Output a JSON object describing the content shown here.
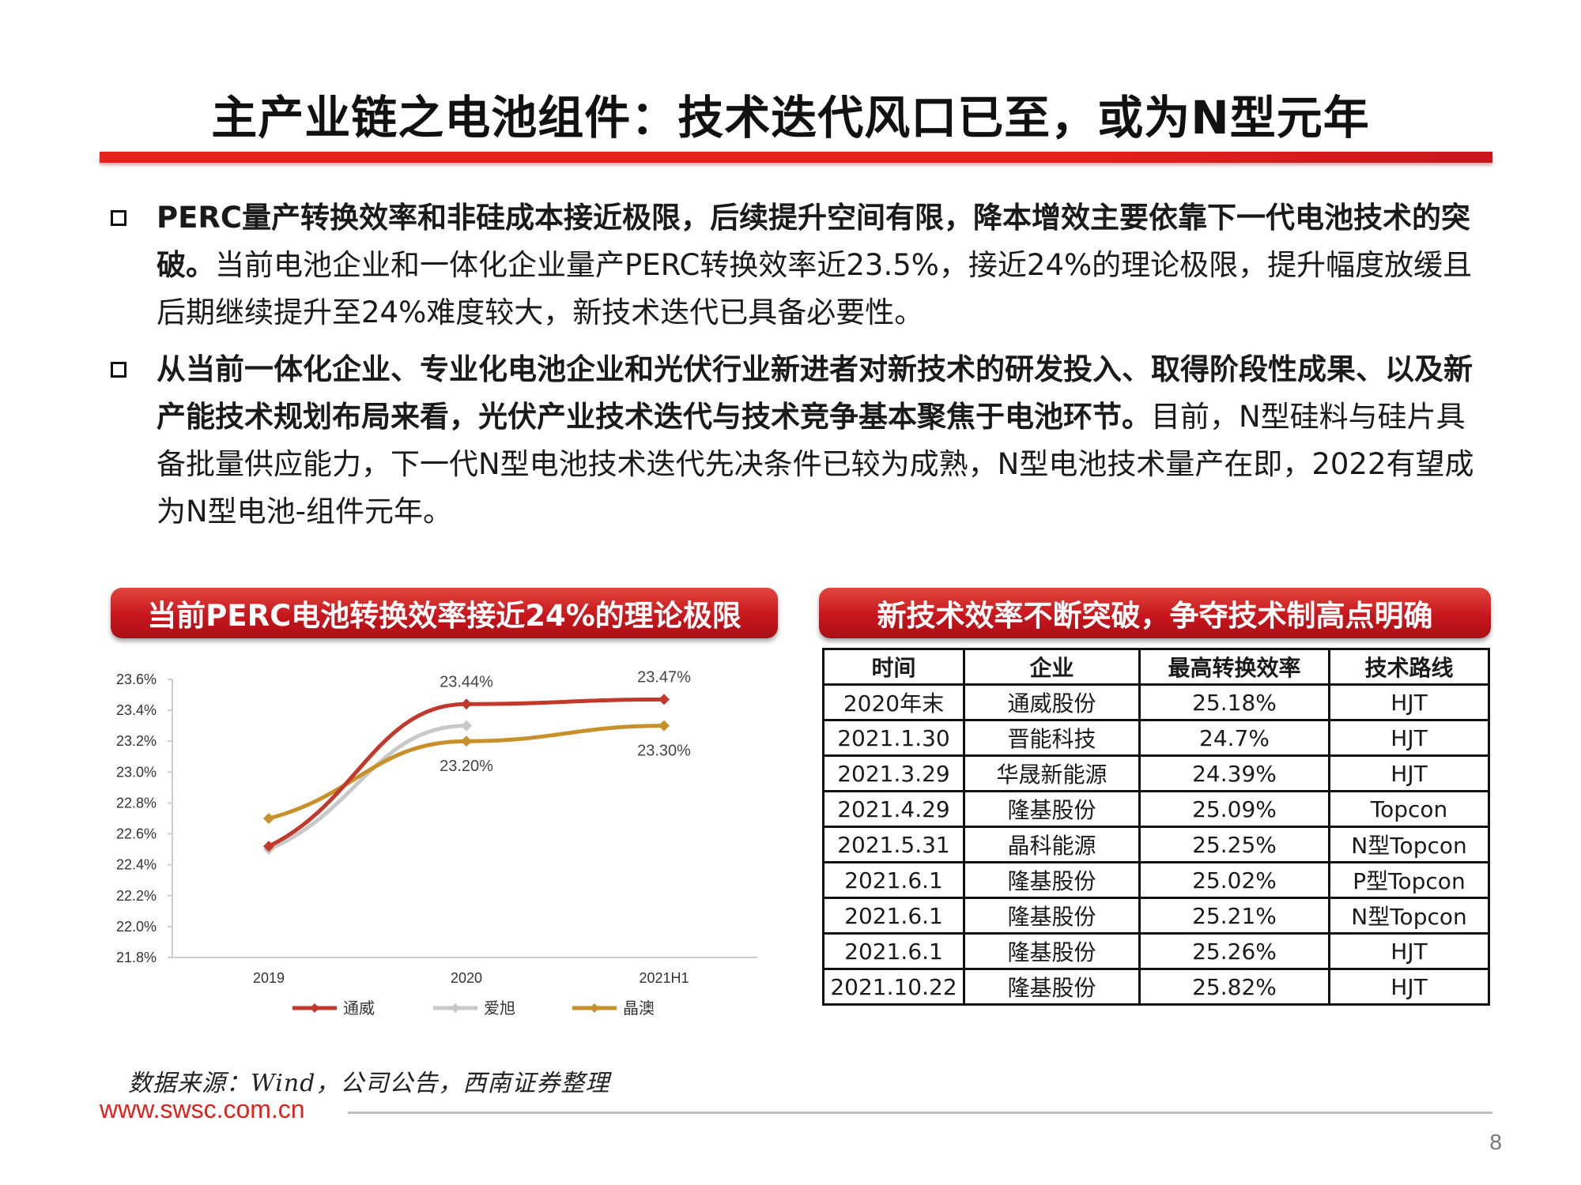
{
  "title": "主产业链之电池组件：技术迭代风口已至，或为N型元年",
  "bullets": [
    {
      "bold": "PERC量产转换效率和非硅成本接近极限，后续提升空间有限，降本增效主要依靠下一代电池技术的突破。",
      "normal": "当前电池企业和一体化企业量产PERC转换效率近23.5%，接近24%的理论极限，提升幅度放缓且后期继续提升至24%难度较大，新技术迭代已具备必要性。"
    },
    {
      "bold": "从当前一体化企业、专业化电池企业和光伏行业新进者对新技术的研发投入、取得阶段性成果、以及新产能技术规划布局来看，光伏产业技术迭代与技术竞争基本聚焦于电池环节。",
      "normal": "目前，N型硅料与硅片具备批量供应能力，下一代N型电池技术迭代先决条件已较为成熟，N型电池技术量产在即，2022有望成为N型电池-组件元年。"
    }
  ],
  "left_panel_title": "当前PERC电池转换效率接近24%的理论极限",
  "right_panel_title": "新技术效率不断突破，争夺技术制高点明确",
  "chart_data": {
    "type": "line",
    "categories": [
      "2019",
      "2020",
      "2021H1"
    ],
    "yticks": [
      "21.8%",
      "22.0%",
      "22.2%",
      "22.4%",
      "22.6%",
      "22.8%",
      "23.0%",
      "23.2%",
      "23.4%",
      "23.6%"
    ],
    "ylim": [
      21.8,
      23.6
    ],
    "series": [
      {
        "name": "通威",
        "values": [
          22.52,
          23.44,
          23.47
        ],
        "color": "#c0392b"
      },
      {
        "name": "爱旭",
        "values": [
          22.5,
          23.3,
          null
        ],
        "color": "#c8c8c8"
      },
      {
        "name": "晶澳",
        "values": [
          22.7,
          23.2,
          23.3
        ],
        "color": "#c8902a"
      }
    ],
    "data_labels": [
      "23.44%",
      "23.47%",
      "23.20%",
      "23.30%"
    ],
    "legend_position": "bottom",
    "grid": false
  },
  "table": {
    "headers": [
      "时间",
      "企业",
      "最高转换效率",
      "技术路线"
    ],
    "rows": [
      [
        "2020年末",
        "通威股份",
        "25.18%",
        "HJT"
      ],
      [
        "2021.1.30",
        "晋能科技",
        "24.7%",
        "HJT"
      ],
      [
        "2021.3.29",
        "华晟新能源",
        "24.39%",
        "HJT"
      ],
      [
        "2021.4.29",
        "隆基股份",
        "25.09%",
        "Topcon"
      ],
      [
        "2021.5.31",
        "晶科能源",
        "25.25%",
        "N型Topcon"
      ],
      [
        "2021.6.1",
        "隆基股份",
        "25.02%",
        "P型Topcon"
      ],
      [
        "2021.6.1",
        "隆基股份",
        "25.21%",
        "N型Topcon"
      ],
      [
        "2021.6.1",
        "隆基股份",
        "25.26%",
        "HJT"
      ],
      [
        "2021.10.22",
        "隆基股份",
        "25.82%",
        "HJT"
      ]
    ]
  },
  "source": "数据来源：Wind，公司公告，西南证券整理",
  "website": "www.swsc.com.cn",
  "page_number": "8"
}
